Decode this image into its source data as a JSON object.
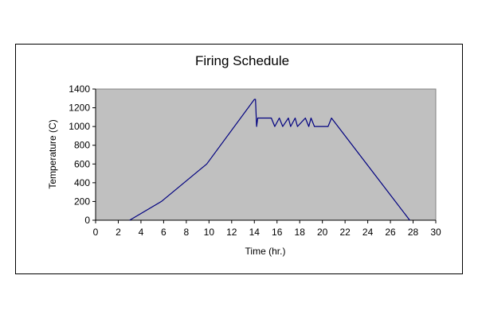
{
  "chart_data": {
    "type": "line",
    "title": "Firing Schedule",
    "xlabel": "Time (hr.)",
    "ylabel": "Temperature (C)",
    "xlim": [
      0,
      30
    ],
    "ylim": [
      0,
      1400
    ],
    "x_ticks": [
      "0",
      "2",
      "4",
      "6",
      "8",
      "10",
      "12",
      "14",
      "16",
      "18",
      "20",
      "22",
      "24",
      "26",
      "28",
      "30"
    ],
    "y_ticks": [
      "0",
      "200",
      "400",
      "600",
      "800",
      "1000",
      "1200",
      "1400"
    ],
    "grid": false,
    "legend": "none",
    "plot_background": "#c0c0c0",
    "series": [
      {
        "color": "#000080",
        "x": [
          3,
          5.8,
          9.8,
          14,
          14.1,
          14.2,
          14.3,
          14.5,
          15.5,
          15.8,
          16.2,
          16.5,
          17.0,
          17.2,
          17.6,
          17.8,
          18.5,
          18.8,
          19.0,
          19.3,
          20.5,
          20.8,
          27.7
        ],
        "y": [
          0,
          200,
          600,
          1290,
          1290,
          1000,
          1090,
          1090,
          1090,
          1000,
          1090,
          1000,
          1090,
          1000,
          1090,
          1000,
          1090,
          1000,
          1090,
          1000,
          1000,
          1090,
          0
        ]
      }
    ]
  }
}
